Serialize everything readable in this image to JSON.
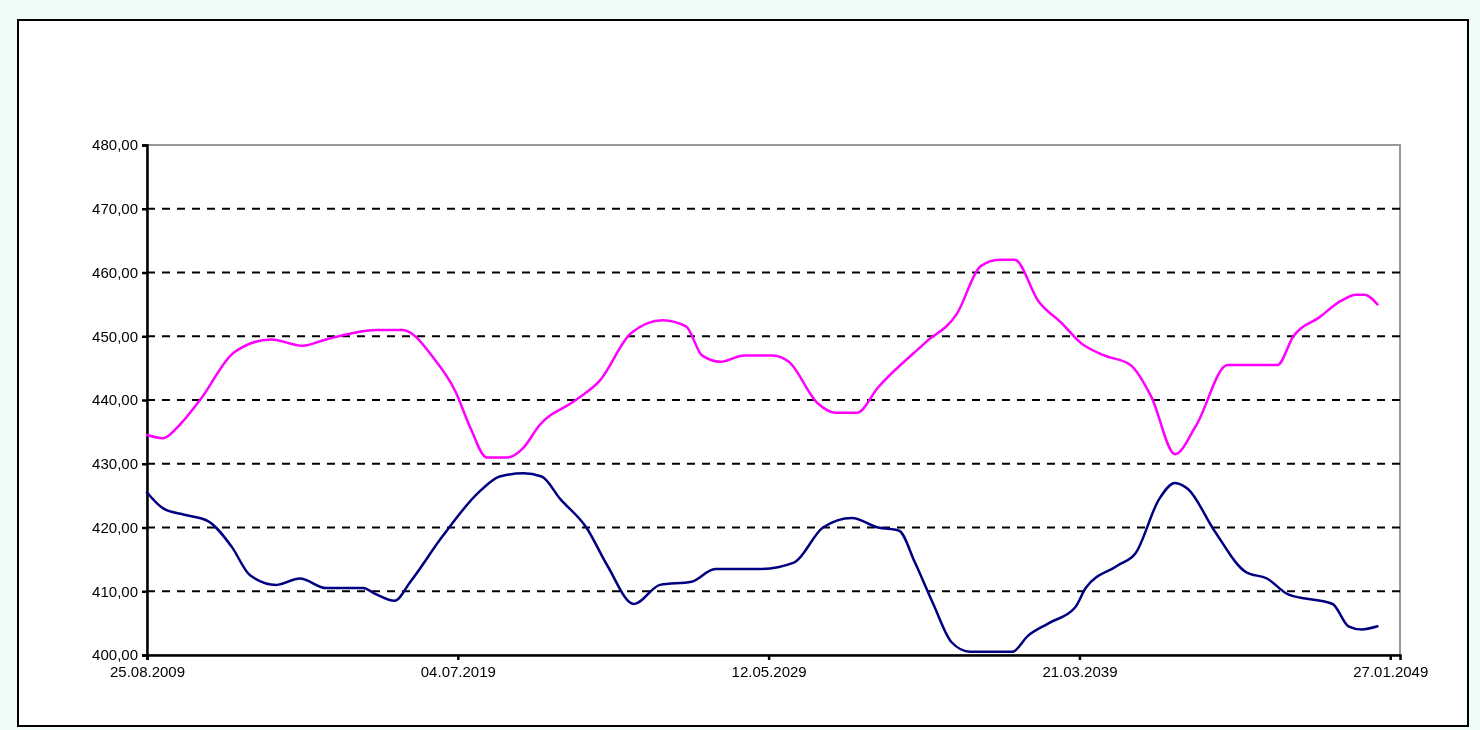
{
  "chart_data": {
    "type": "line",
    "xlim": [
      "2009-08-25",
      "2049-05-20"
    ],
    "xticks": [
      {
        "value": "2009-08-25",
        "label": "25.08.2009"
      },
      {
        "value": "2019-07-04",
        "label": "04.07.2019"
      },
      {
        "value": "2029-05-12",
        "label": "12.05.2029"
      },
      {
        "value": "2039-03-21",
        "label": "21.03.2039"
      },
      {
        "value": "2049-01-27",
        "label": "27.01.2049"
      }
    ],
    "ylim": [
      400,
      480
    ],
    "yticks": [
      {
        "value": 400,
        "label": "400,00"
      },
      {
        "value": 410,
        "label": "410,00"
      },
      {
        "value": 420,
        "label": "420,00"
      },
      {
        "value": 430,
        "label": "430,00"
      },
      {
        "value": 440,
        "label": "440,00"
      },
      {
        "value": 450,
        "label": "450,00"
      },
      {
        "value": 460,
        "label": "460,00"
      },
      {
        "value": 470,
        "label": "470,00"
      },
      {
        "value": 480,
        "label": "480,00"
      }
    ],
    "grid": "y",
    "marker": "none",
    "line_style": "solid",
    "series": [
      {
        "color": "#ff00ff",
        "x": [
          "2009-08-25",
          "2010-03",
          "2010-09",
          "2011-05",
          "2012-06",
          "2013-08",
          "2014-08",
          "2015-05",
          "2016-12",
          "2017-10",
          "2018-10",
          "2019-06",
          "2019-12",
          "2020-06",
          "2021-02",
          "2021-08",
          "2022-02",
          "2023-04",
          "2024-01",
          "2025-01",
          "2026-01",
          "2026-10",
          "2027-04",
          "2027-11",
          "2028-08",
          "2029-03",
          "2029-07",
          "2030-01",
          "2030-12",
          "2031-07",
          "2032-03",
          "2032-11",
          "2034-05",
          "2035-05",
          "2036-02",
          "2036-09",
          "2037-03",
          "2037-12",
          "2038-09",
          "2039-04",
          "2040-01",
          "2040-11",
          "2041-07",
          "2042-04",
          "2042-12",
          "2043-12",
          "2045-07",
          "2046-01",
          "2046-11",
          "2047-07",
          "2048-01",
          "2048-04",
          "2048-09"
        ],
        "values": [
          434.5,
          434,
          436,
          440,
          447.5,
          449.5,
          448.5,
          449.5,
          451,
          451,
          446.5,
          441.5,
          435.5,
          431,
          431,
          432.5,
          436,
          440,
          443,
          450.5,
          452.5,
          451.5,
          447,
          446,
          447,
          447,
          447,
          446,
          439.5,
          438,
          438,
          442,
          449,
          453.5,
          461,
          462,
          462,
          455.5,
          452,
          449,
          447,
          445.5,
          440.5,
          431.5,
          436,
          445.5,
          445.5,
          450,
          453,
          455.5,
          456.5,
          456.5,
          455
        ]
      },
      {
        "color": "#000080",
        "x": [
          "2009-08-25",
          "2010-03",
          "2010-11",
          "2011-08",
          "2012-05",
          "2012-12",
          "2013-10",
          "2014-07",
          "2015-05",
          "2016-07",
          "2016-12",
          "2017-07",
          "2018-01",
          "2019-01",
          "2020-03",
          "2020-11",
          "2021-08",
          "2022-03",
          "2022-10",
          "2023-08",
          "2024-04",
          "2025-02",
          "2025-12",
          "2026-12",
          "2027-09",
          "2029-02",
          "2030-03",
          "2031-02",
          "2032-01",
          "2032-11",
          "2033-07",
          "2034-01",
          "2034-08",
          "2035-03",
          "2035-10",
          "2037-02",
          "2037-08",
          "2038-04",
          "2039-02",
          "2039-06",
          "2040-06",
          "2041-01",
          "2041-10",
          "2042-04",
          "2042-09",
          "2043-07",
          "2044-07",
          "2045-03",
          "2045-11",
          "2047-04",
          "2047-10",
          "2048-03",
          "2048-09"
        ],
        "values": [
          425.5,
          423,
          422,
          421,
          417,
          412.5,
          411,
          412,
          410.5,
          410.5,
          409.5,
          408.5,
          411.5,
          418.5,
          425.5,
          428,
          428.5,
          428,
          424.5,
          420,
          414,
          408,
          411,
          411.5,
          413.5,
          413.5,
          414.5,
          420,
          421.5,
          420,
          419.5,
          414.5,
          408,
          402,
          400.5,
          400.5,
          403,
          405,
          407.5,
          410.5,
          414,
          416,
          424.5,
          427,
          426,
          419.5,
          413,
          412,
          409.5,
          408,
          404.5,
          404,
          404.5
        ]
      }
    ]
  }
}
